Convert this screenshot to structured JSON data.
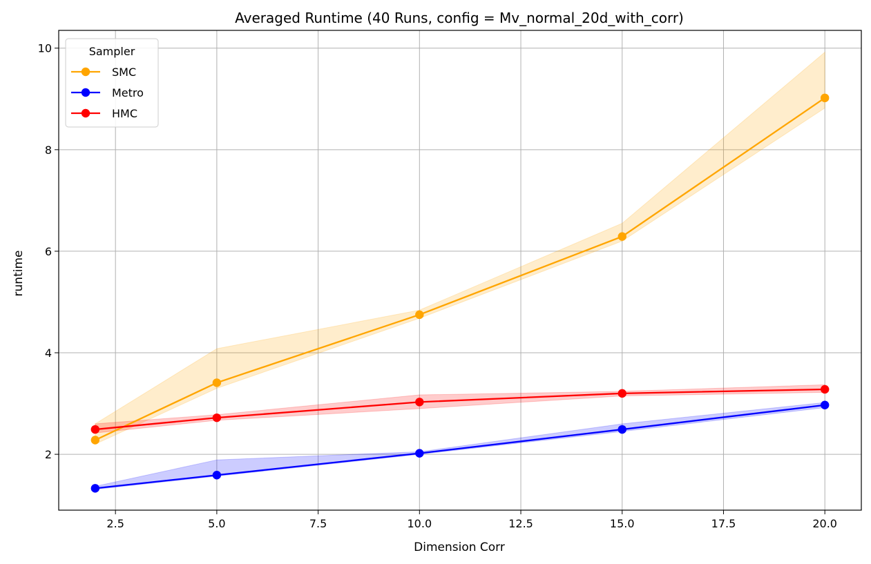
{
  "chart_data": {
    "type": "line",
    "title": "Averaged Runtime (40 Runs, config = Mv_normal_20d_with_corr)",
    "xlabel": "Dimension Corr",
    "ylabel": "runtime",
    "xlim": [
      1.1,
      20.9
    ],
    "ylim": [
      0.9,
      10.35
    ],
    "xticks": [
      2.5,
      5.0,
      7.5,
      10.0,
      12.5,
      15.0,
      17.5,
      20.0
    ],
    "xtick_labels": [
      "2.5",
      "5.0",
      "7.5",
      "10.0",
      "12.5",
      "15.0",
      "17.5",
      "20.0"
    ],
    "yticks": [
      2,
      4,
      6,
      8,
      10
    ],
    "ytick_labels": [
      "2",
      "4",
      "6",
      "8",
      "10"
    ],
    "grid": true,
    "legend": {
      "title": "Sampler",
      "position": "top-left"
    },
    "x": [
      2,
      5,
      10,
      15,
      20
    ],
    "series": [
      {
        "name": "SMC",
        "color": "#FFA500",
        "values": [
          2.28,
          3.41,
          4.75,
          6.29,
          9.02
        ],
        "ci_lower": [
          2.2,
          3.3,
          4.68,
          6.2,
          8.82
        ],
        "ci_upper": [
          2.6,
          4.08,
          4.84,
          6.55,
          9.92
        ]
      },
      {
        "name": "Metro",
        "color": "#0000FF",
        "values": [
          1.33,
          1.59,
          2.02,
          2.49,
          2.97
        ],
        "ci_lower": [
          1.31,
          1.57,
          2.0,
          2.45,
          2.92
        ],
        "ci_upper": [
          1.37,
          1.89,
          2.05,
          2.6,
          3.02
        ]
      },
      {
        "name": "HMC",
        "color": "#FF0000",
        "values": [
          2.49,
          2.72,
          3.03,
          3.2,
          3.28
        ],
        "ci_lower": [
          2.42,
          2.67,
          2.9,
          3.15,
          3.22
        ],
        "ci_upper": [
          2.6,
          2.78,
          3.17,
          3.24,
          3.37
        ]
      }
    ]
  }
}
